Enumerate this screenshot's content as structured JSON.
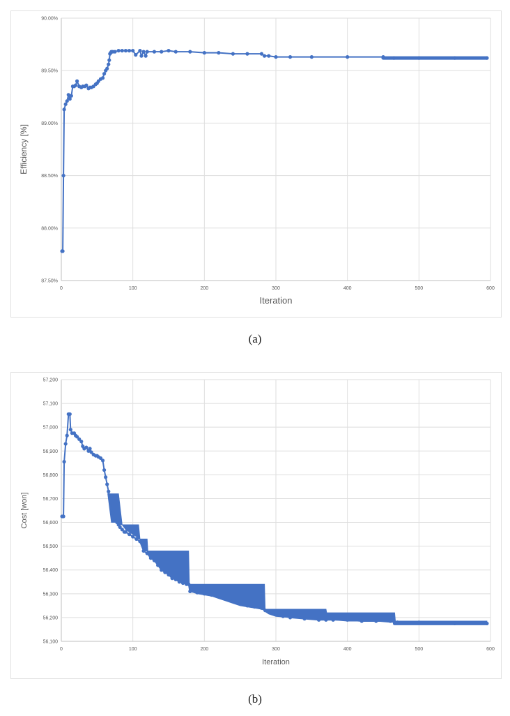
{
  "chart_data": [
    {
      "type": "line",
      "xlabel": "Iteration",
      "ylabel": "Efficiency [%]",
      "xlim": [
        0,
        600
      ],
      "ylim": [
        87.5,
        90.0
      ],
      "x_ticks": [
        "0",
        "100",
        "200",
        "300",
        "400",
        "500",
        "600"
      ],
      "y_ticks": [
        "87.50%",
        "88.00%",
        "88.50%",
        "89.00%",
        "89.50%",
        "90.00%"
      ],
      "grid": true,
      "legend": "none",
      "color": "#4472C4",
      "series": [
        {
          "x": [
            1,
            2,
            3,
            4,
            6,
            8,
            10,
            12,
            14,
            16,
            18,
            20,
            22,
            25,
            28,
            30,
            33,
            35,
            38,
            40,
            42,
            45,
            48,
            50,
            52,
            55,
            58,
            60,
            62,
            64,
            66,
            67,
            68,
            69,
            70,
            72,
            75,
            80,
            85,
            90,
            95,
            100,
            104,
            110,
            112,
            115,
            118,
            120,
            130,
            140,
            150,
            160,
            180,
            200,
            220,
            240,
            260,
            280,
            284,
            290,
            300,
            320,
            350,
            400,
            450,
            465,
            500,
            550,
            595
          ],
          "y": [
            87.78,
            87.78,
            88.5,
            89.13,
            89.18,
            89.21,
            89.27,
            89.23,
            89.26,
            89.35,
            89.35,
            89.36,
            89.4,
            89.35,
            89.34,
            89.35,
            89.35,
            89.36,
            89.33,
            89.34,
            89.34,
            89.35,
            89.37,
            89.38,
            89.4,
            89.42,
            89.43,
            89.47,
            89.5,
            89.52,
            89.56,
            89.6,
            89.66,
            89.67,
            89.68,
            89.68,
            89.68,
            89.69,
            89.69,
            89.69,
            89.69,
            89.69,
            89.65,
            89.69,
            89.64,
            89.68,
            89.64,
            89.68,
            89.68,
            89.68,
            89.69,
            89.68,
            89.68,
            89.67,
            89.67,
            89.66,
            89.66,
            89.66,
            89.64,
            89.64,
            89.63,
            89.63,
            89.63,
            89.63,
            89.63,
            89.62,
            89.62,
            89.62,
            89.62
          ]
        }
      ]
    },
    {
      "type": "line",
      "xlabel": "Iteration",
      "ylabel": "Cost [won]",
      "xlim": [
        0,
        600
      ],
      "ylim": [
        56100,
        57200
      ],
      "x_ticks": [
        "0",
        "100",
        "200",
        "300",
        "400",
        "500",
        "600"
      ],
      "y_ticks": [
        "56,100",
        "56,200",
        "56,300",
        "56,400",
        "56,500",
        "56,600",
        "56,700",
        "56,800",
        "56,900",
        "57,000",
        "57,100",
        "57,200"
      ],
      "grid": true,
      "legend": "none",
      "color": "#4472C4",
      "series": [
        {
          "x": [
            1,
            2,
            3,
            4,
            6,
            8,
            10,
            11,
            12,
            13,
            15,
            18,
            20,
            22,
            25,
            28,
            30,
            32,
            35,
            38,
            40,
            42,
            45,
            48,
            50,
            52,
            55,
            58,
            60,
            62,
            64,
            66,
            68,
            70,
            72,
            75,
            78,
            80,
            82,
            85,
            88,
            90,
            95,
            100,
            105,
            110,
            115,
            120,
            125,
            130,
            135,
            140,
            145,
            150,
            155,
            160,
            165,
            170,
            175,
            178,
            180,
            190,
            200,
            210,
            220,
            230,
            240,
            250,
            260,
            270,
            280,
            285,
            290,
            300,
            310,
            320,
            340,
            360,
            370,
            380,
            400,
            420,
            440,
            460,
            466,
            470,
            500,
            550,
            595
          ],
          "y": [
            56625,
            56625,
            56625,
            56855,
            56930,
            56965,
            57055,
            57055,
            57055,
            56990,
            56975,
            56975,
            56965,
            56960,
            56950,
            56940,
            56920,
            56910,
            56915,
            56900,
            56910,
            56895,
            56885,
            56880,
            56880,
            56875,
            56870,
            56860,
            56820,
            56790,
            56760,
            56730,
            56700,
            56660,
            56640,
            56620,
            56600,
            56590,
            56580,
            56570,
            56560,
            56560,
            56550,
            56540,
            56530,
            56520,
            56480,
            56470,
            56450,
            56440,
            56420,
            56400,
            56390,
            56380,
            56365,
            56360,
            56350,
            56345,
            56340,
            56340,
            56310,
            56305,
            56300,
            56295,
            56290,
            56280,
            56270,
            56260,
            56250,
            56245,
            56240,
            56230,
            56225,
            56215,
            56205,
            56200,
            56195,
            56190,
            56190,
            56190,
            56190,
            56185,
            56185,
            56185,
            56180,
            56180,
            56180,
            56175,
            56175
          ]
        }
      ],
      "band": {
        "x": [
          65,
          70,
          75,
          80,
          85,
          90,
          95,
          100,
          105,
          108,
          110,
          115,
          120,
          121,
          125,
          130,
          135,
          140,
          145,
          150,
          155,
          160,
          165,
          170,
          175,
          178,
          179,
          185,
          190,
          200,
          210,
          220,
          230,
          240,
          250,
          260,
          270,
          280,
          284,
          285,
          290,
          300,
          320,
          340,
          360,
          370,
          371,
          380,
          400,
          420,
          440,
          460,
          466,
          467,
          480,
          500,
          520,
          540,
          560,
          580,
          595
        ],
        "upper": [
          56720,
          56720,
          56720,
          56720,
          56590,
          56590,
          56590,
          56590,
          56590,
          56590,
          56530,
          56530,
          56530,
          56480,
          56480,
          56480,
          56480,
          56480,
          56480,
          56480,
          56480,
          56480,
          56480,
          56480,
          56480,
          56480,
          56340,
          56340,
          56340,
          56340,
          56340,
          56340,
          56340,
          56340,
          56340,
          56340,
          56340,
          56340,
          56340,
          56235,
          56235,
          56235,
          56235,
          56235,
          56235,
          56235,
          56220,
          56220,
          56220,
          56220,
          56220,
          56220,
          56220,
          56185,
          56185,
          56185,
          56185,
          56185,
          56185,
          56185,
          56185
        ],
        "lower": [
          56720,
          56600,
          56600,
          56590,
          56590,
          56570,
          56560,
          56550,
          56540,
          56530,
          56530,
          56480,
          56480,
          56470,
          56450,
          56440,
          56420,
          56400,
          56390,
          56380,
          56365,
          56360,
          56350,
          56345,
          56340,
          56340,
          56310,
          56305,
          56300,
          56295,
          56290,
          56280,
          56270,
          56260,
          56250,
          56245,
          56240,
          56235,
          56230,
          56225,
          56215,
          56205,
          56200,
          56195,
          56190,
          56190,
          56190,
          56190,
          56185,
          56185,
          56185,
          56180,
          56180,
          56180,
          56180,
          56180,
          56180,
          56175,
          56175,
          56175,
          56175
        ]
      }
    }
  ],
  "captions": [
    "(a)",
    "(b)"
  ]
}
